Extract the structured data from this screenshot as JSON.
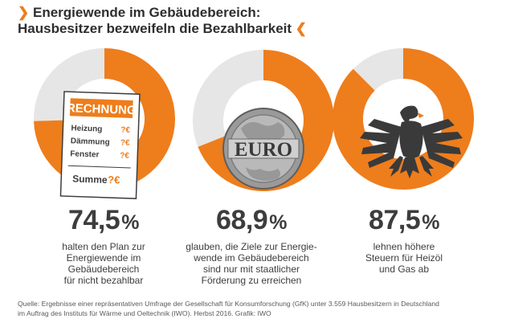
{
  "title": {
    "line1": "Energiewende im Gebäudebereich:",
    "line2": "Hausbesitzer bezweifeln die Bezahlbarkeit",
    "chevron_left": "❯",
    "chevron_right": "❮"
  },
  "colors": {
    "accent": "#ee7d1c",
    "remainder": "#e6e6e6",
    "text": "#3d3d3d"
  },
  "chart_data": {
    "type": "pie",
    "title": "Energiewende im Gebäudebereich: Hausbesitzer bezweifeln die Bezahlbarkeit",
    "series": [
      {
        "value": 74.5,
        "unit": "%",
        "label": "halten den Plan zur Energiewende im Gebäudebereich für nicht bezahlbar"
      },
      {
        "value": 68.9,
        "unit": "%",
        "label": "glauben, die Ziele zur Energiewende im Gebäudebereich sind nur mit staatlicher Förderung zu erreichen"
      },
      {
        "value": 87.5,
        "unit": "%",
        "label": "lehnen höhere Steuern für Heizöl und Gas ab"
      }
    ]
  },
  "stats": [
    {
      "value": "74,5",
      "unit": "%",
      "desc": [
        "halten den Plan zur",
        "Energiewende im",
        "Gebäudebereich",
        "für nicht bezahlbar"
      ],
      "icon": "invoice-icon"
    },
    {
      "value": "68,9",
      "unit": "%",
      "desc": [
        "glauben, die Ziele zur Energie-",
        "wende im Gebäudebereich",
        "sind nur mit staatlicher",
        "Förderung zu erreichen"
      ],
      "icon": "euro-coin-icon"
    },
    {
      "value": "87,5",
      "unit": "%",
      "desc": [
        "lehnen höhere",
        "Steuern für Heizöl",
        "und Gas ab"
      ],
      "icon": "federal-eagle-icon"
    }
  ],
  "invoice": {
    "heading": "RECHNUNG",
    "rows": [
      {
        "label": "Heizung",
        "value": "?€"
      },
      {
        "label": "Dämmung",
        "value": "?€"
      },
      {
        "label": "Fenster",
        "value": "?€"
      }
    ],
    "total_label": "Summe",
    "total_value": "?€"
  },
  "coin": {
    "text": "EURO"
  },
  "source": {
    "line1": "Quelle: Ergebnisse einer repräsentativen Umfrage der Gesellschaft für Konsumforschung (GfK) unter 3.559 Hausbesitzern in Deutschland",
    "line2": "im Auftrag des Instituts für Wärme und Oeltechnik (IWO). Herbst 2016. Grafik: IWO"
  }
}
